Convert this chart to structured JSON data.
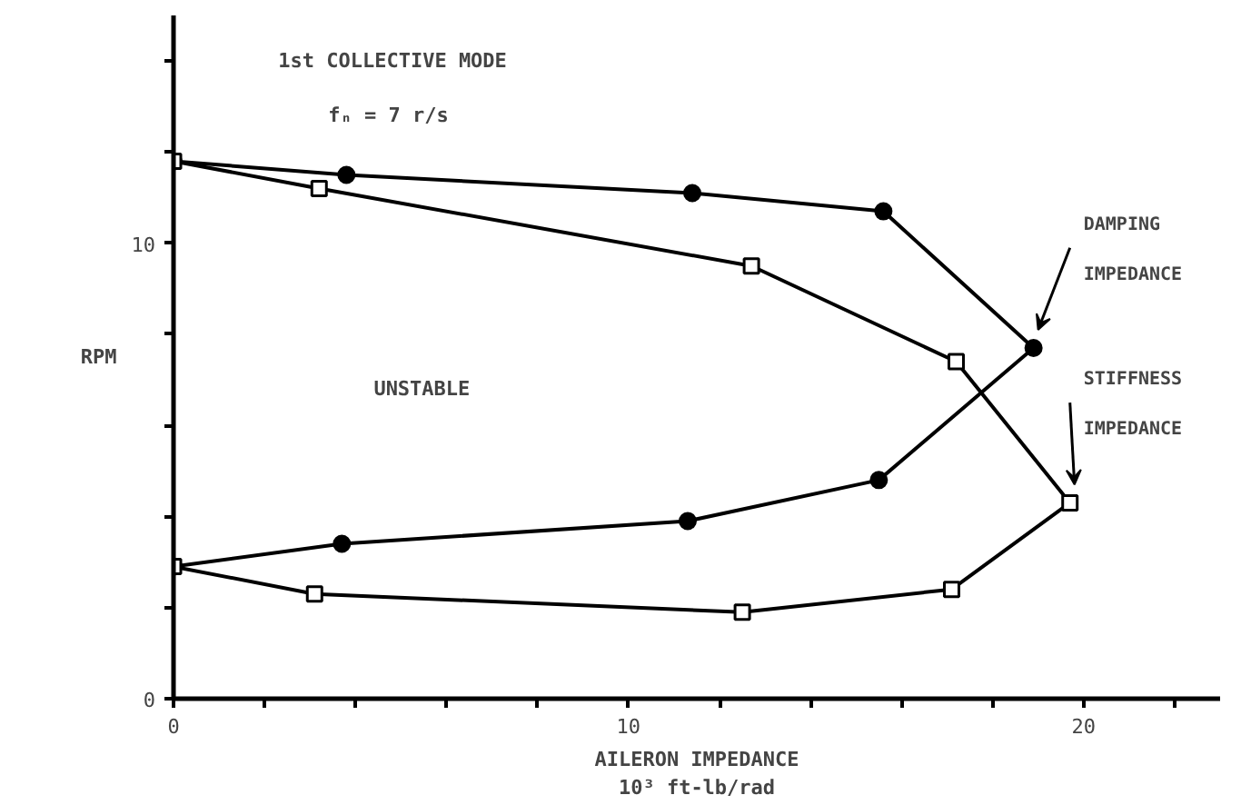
{
  "chart_data": {
    "type": "line",
    "xlabel": "AILERON IMPEDANCE\n10³ ft-lb/rad",
    "ylabel": "RPM",
    "annotations": [
      "1st COLLECTIVE MODE",
      "fₙ = 7 r/s",
      "UNSTABLE"
    ],
    "xlim": [
      0,
      23
    ],
    "ylim": [
      0,
      15
    ],
    "xticks": [
      0,
      {
        "value": 2,
        "label": null
      },
      {
        "value": 4,
        "label": null
      },
      {
        "value": 6,
        "label": null
      },
      {
        "value": 8,
        "label": null
      },
      10,
      {
        "value": 12,
        "label": null
      },
      {
        "value": 14,
        "label": null
      },
      {
        "value": 16,
        "label": null
      },
      {
        "value": 18,
        "label": null
      },
      20,
      {
        "value": 22,
        "label": null
      }
    ],
    "yticks": [
      0,
      {
        "value": 2,
        "label": null
      },
      {
        "value": 4,
        "label": null
      },
      {
        "value": 6,
        "label": null
      },
      {
        "value": 8,
        "label": null
      },
      10,
      {
        "value": 12,
        "label": null
      },
      {
        "value": 14,
        "label": null
      }
    ],
    "grid": false,
    "legend": false,
    "line_style": "solid",
    "series": [
      {
        "name": "DAMPING IMPEDANCE",
        "color": "#000000",
        "marker": "circle",
        "x": [
          0,
          3.8,
          11.4,
          15.6,
          18.9,
          15.5,
          11.3,
          3.7,
          0
        ],
        "values": [
          11.8,
          11.5,
          11.1,
          10.7,
          7.7,
          4.8,
          3.9,
          3.4,
          2.9
        ]
      },
      {
        "name": "STIFFNESS IMPEDANCE",
        "color": "#000000",
        "marker": "square",
        "x": [
          0,
          3.2,
          12.7,
          17.2,
          19.7,
          17.1,
          12.5,
          3.1,
          0
        ],
        "values": [
          11.8,
          11.2,
          9.5,
          7.4,
          4.3,
          2.4,
          1.9,
          2.3,
          2.9
        ]
      }
    ]
  }
}
